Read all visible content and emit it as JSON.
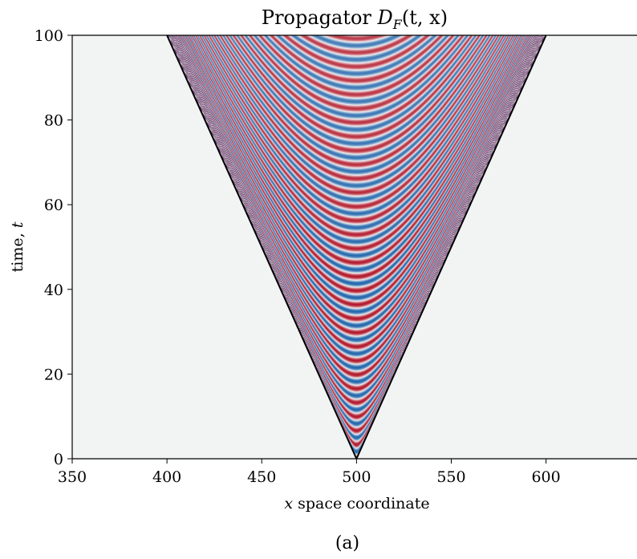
{
  "figure": {
    "caption": "(a)"
  },
  "chart_data": {
    "type": "heatmap",
    "title": "Propagator D_F(t, x)",
    "title_parts": {
      "prefix": "Propagator ",
      "symbol": "D",
      "subscript": "F",
      "args": "(t, x)"
    },
    "xlabel": "x space coordinate",
    "xlabel_parts": {
      "var": "x",
      "rest": " space coordinate"
    },
    "ylabel": "time, t",
    "ylabel_parts": {
      "rest": "time, ",
      "var": "t"
    },
    "xlim": [
      350,
      648
    ],
    "ylim": [
      0,
      100
    ],
    "xticks": [
      350,
      400,
      450,
      500,
      550,
      600
    ],
    "yticks": [
      0,
      20,
      40,
      60,
      80,
      100
    ],
    "light_cone": {
      "apex_x": 500,
      "apex_t": 0,
      "speed": 1
    },
    "colormap": "RdBu (diverging: red positive, blue negative, near-white zero)",
    "background_color": "#f2f4f4",
    "colors": {
      "red": "#b2182b",
      "blue": "#2166ac",
      "mid": "#f7f7f7"
    },
    "grid": false,
    "legend": "none"
  }
}
